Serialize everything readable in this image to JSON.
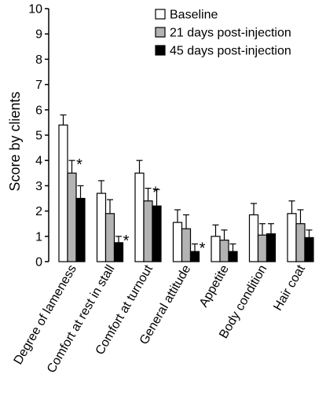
{
  "chart_data": {
    "type": "bar",
    "ylabel": "Score by clients",
    "ylim": [
      0,
      10
    ],
    "yticks": [
      "0",
      "1",
      "2",
      "3",
      "4",
      "5",
      "6",
      "7",
      "8",
      "9",
      "10"
    ],
    "categories": [
      "Degree of lameness",
      "Comfort at rest in stall",
      "Comfort at turnout",
      "General attitude",
      "Appetite",
      "Body condition",
      "Hair coat"
    ],
    "series": [
      {
        "name": "Baseline",
        "color": "#ffffff",
        "values": [
          5.4,
          2.7,
          3.5,
          1.55,
          1.0,
          1.85,
          1.9
        ],
        "errors": [
          0.4,
          0.5,
          0.5,
          0.5,
          0.45,
          0.45,
          0.5
        ]
      },
      {
        "name": "21 days post-injection",
        "color": "#b3b3b3",
        "values": [
          3.5,
          1.9,
          2.4,
          1.3,
          0.85,
          1.05,
          1.5
        ],
        "errors": [
          0.5,
          0.55,
          0.5,
          0.55,
          0.4,
          0.45,
          0.55
        ]
      },
      {
        "name": "45 days post-injection",
        "color": "#000000",
        "values": [
          2.5,
          0.75,
          2.2,
          0.4,
          0.4,
          1.1,
          0.95
        ],
        "errors": [
          0.5,
          0.25,
          0.65,
          0.3,
          0.3,
          0.4,
          0.3
        ]
      }
    ],
    "significance": [
      {
        "category": 0,
        "series": 1,
        "text": "*"
      },
      {
        "category": 1,
        "series": 2,
        "text": "*"
      },
      {
        "category": 2,
        "series": 1,
        "text": "*"
      },
      {
        "category": 3,
        "series": 2,
        "text": "*"
      }
    ],
    "legend_position": "top-right",
    "grid": false
  }
}
